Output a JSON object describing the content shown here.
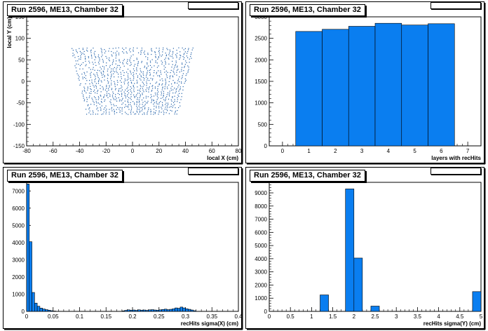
{
  "chart_data": [
    {
      "type": "scatter",
      "title": "Run 2596, ME13, Chamber 32",
      "xlabel": "local X (cm)",
      "ylabel": "local Y (cm)",
      "xlim": [
        -80,
        80
      ],
      "ylim": [
        -150,
        150
      ],
      "xticks": [
        -80,
        -60,
        -40,
        -20,
        0,
        20,
        40,
        60,
        80
      ],
      "yticks": [
        -150,
        -100,
        -50,
        0,
        50,
        100,
        150
      ],
      "region": {
        "y_top": 78,
        "y_bottom": -75,
        "x_top_half_width": 47,
        "x_bottom_half_width": 35
      },
      "color": "#1f5fa8"
    },
    {
      "type": "bar",
      "title": "Run 2596, ME13, Chamber 32",
      "xlabel": "layers with recHits",
      "ylabel": "",
      "xlim": [
        -0.5,
        7.5
      ],
      "ylim": [
        0,
        3000
      ],
      "xticks": [
        0,
        1,
        2,
        3,
        4,
        5,
        6,
        7
      ],
      "yticks": [
        0,
        500,
        1000,
        1500,
        2000,
        2500,
        3000
      ],
      "x": [
        1,
        2,
        3,
        4,
        5,
        6
      ],
      "values": [
        2660,
        2710,
        2780,
        2850,
        2810,
        2840
      ],
      "color": "#0a7ef0"
    },
    {
      "type": "bar",
      "title": "Run 2596, ME13, Chamber 32",
      "xlabel": "recHits sigma(X) (cm)",
      "ylabel": "",
      "xlim": [
        0,
        0.4
      ],
      "ylim": [
        0,
        7500
      ],
      "xticks": [
        0,
        0.05,
        0.1,
        0.15,
        0.2,
        0.25,
        0.3,
        0.35,
        0.4
      ],
      "yticks": [
        0,
        1000,
        2000,
        3000,
        4000,
        5000,
        6000,
        7000
      ],
      "bin_width": 0.005,
      "x": [
        0.0025,
        0.0075,
        0.0125,
        0.0175,
        0.0225,
        0.0275,
        0.0325,
        0.0375,
        0.0425,
        0.0475,
        0.0525,
        0.1825,
        0.1875,
        0.1925,
        0.1975,
        0.2025,
        0.2075,
        0.2125,
        0.2175,
        0.2225,
        0.2275,
        0.2325,
        0.2375,
        0.2425,
        0.2475,
        0.2525,
        0.2575,
        0.2625,
        0.2675,
        0.2725,
        0.2775,
        0.2825,
        0.2875,
        0.2925,
        0.2975,
        0.3025,
        0.3075,
        0.3125,
        0.3175
      ],
      "values": [
        7400,
        4050,
        1100,
        480,
        300,
        190,
        140,
        100,
        70,
        40,
        20,
        30,
        60,
        90,
        70,
        80,
        60,
        90,
        70,
        80,
        60,
        90,
        100,
        80,
        70,
        90,
        110,
        130,
        100,
        120,
        150,
        200,
        180,
        250,
        200,
        150,
        120,
        80,
        40
      ],
      "color": "#0a7ef0"
    },
    {
      "type": "bar",
      "title": "Run 2596, ME13, Chamber 32",
      "xlabel": "recHits sigma(Y) (cm)",
      "ylabel": "",
      "xlim": [
        0,
        5
      ],
      "ylim": [
        0,
        9800
      ],
      "xticks": [
        0,
        0.5,
        1,
        1.5,
        2,
        2.5,
        3,
        3.5,
        4,
        4.5,
        5
      ],
      "yticks": [
        0,
        1000,
        2000,
        3000,
        4000,
        5000,
        6000,
        7000,
        8000,
        9000
      ],
      "bin_width": 0.2,
      "x": [
        1.3,
        1.9,
        2.1,
        2.5,
        4.9
      ],
      "values": [
        1250,
        9300,
        4050,
        400,
        1500
      ],
      "color": "#0a7ef0"
    }
  ]
}
